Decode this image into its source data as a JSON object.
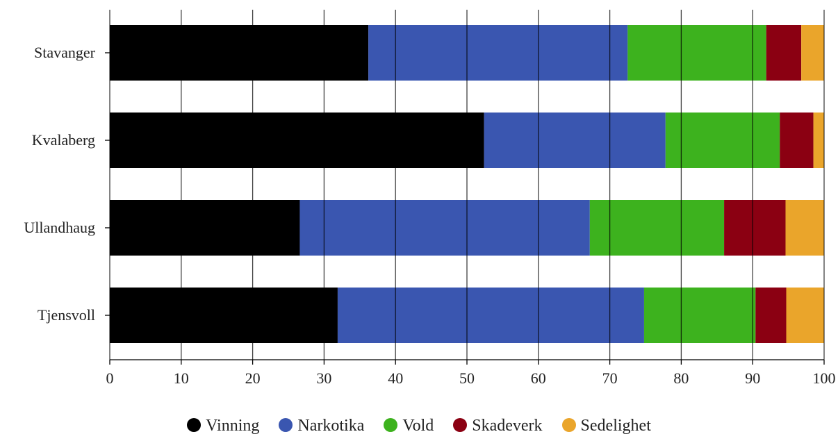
{
  "chart_data": {
    "type": "bar",
    "orientation": "horizontal",
    "stacked": true,
    "categories": [
      "Stavanger",
      "Kvalaberg",
      "Ullandhaug",
      "Tjensvoll"
    ],
    "series": [
      {
        "name": "Vinning",
        "color": "#000000",
        "values": [
          36.2,
          52.4,
          26.6,
          31.9
        ]
      },
      {
        "name": "Narkotika",
        "color": "#3a56b0",
        "values": [
          36.3,
          25.4,
          40.6,
          42.9
        ]
      },
      {
        "name": "Vold",
        "color": "#3db21e",
        "values": [
          19.4,
          16.0,
          18.8,
          15.6
        ]
      },
      {
        "name": "Skadeverk",
        "color": "#8b0012",
        "values": [
          4.9,
          4.7,
          8.6,
          4.3
        ]
      },
      {
        "name": "Sedelighet",
        "color": "#eaa52b",
        "values": [
          3.2,
          1.5,
          5.4,
          5.3
        ]
      }
    ],
    "xlim": [
      0,
      100
    ],
    "xticks": [
      0,
      10,
      20,
      30,
      40,
      50,
      60,
      70,
      80,
      90,
      100
    ],
    "grid": true,
    "legend_position": "bottom",
    "title": "",
    "xlabel": "",
    "ylabel": ""
  }
}
